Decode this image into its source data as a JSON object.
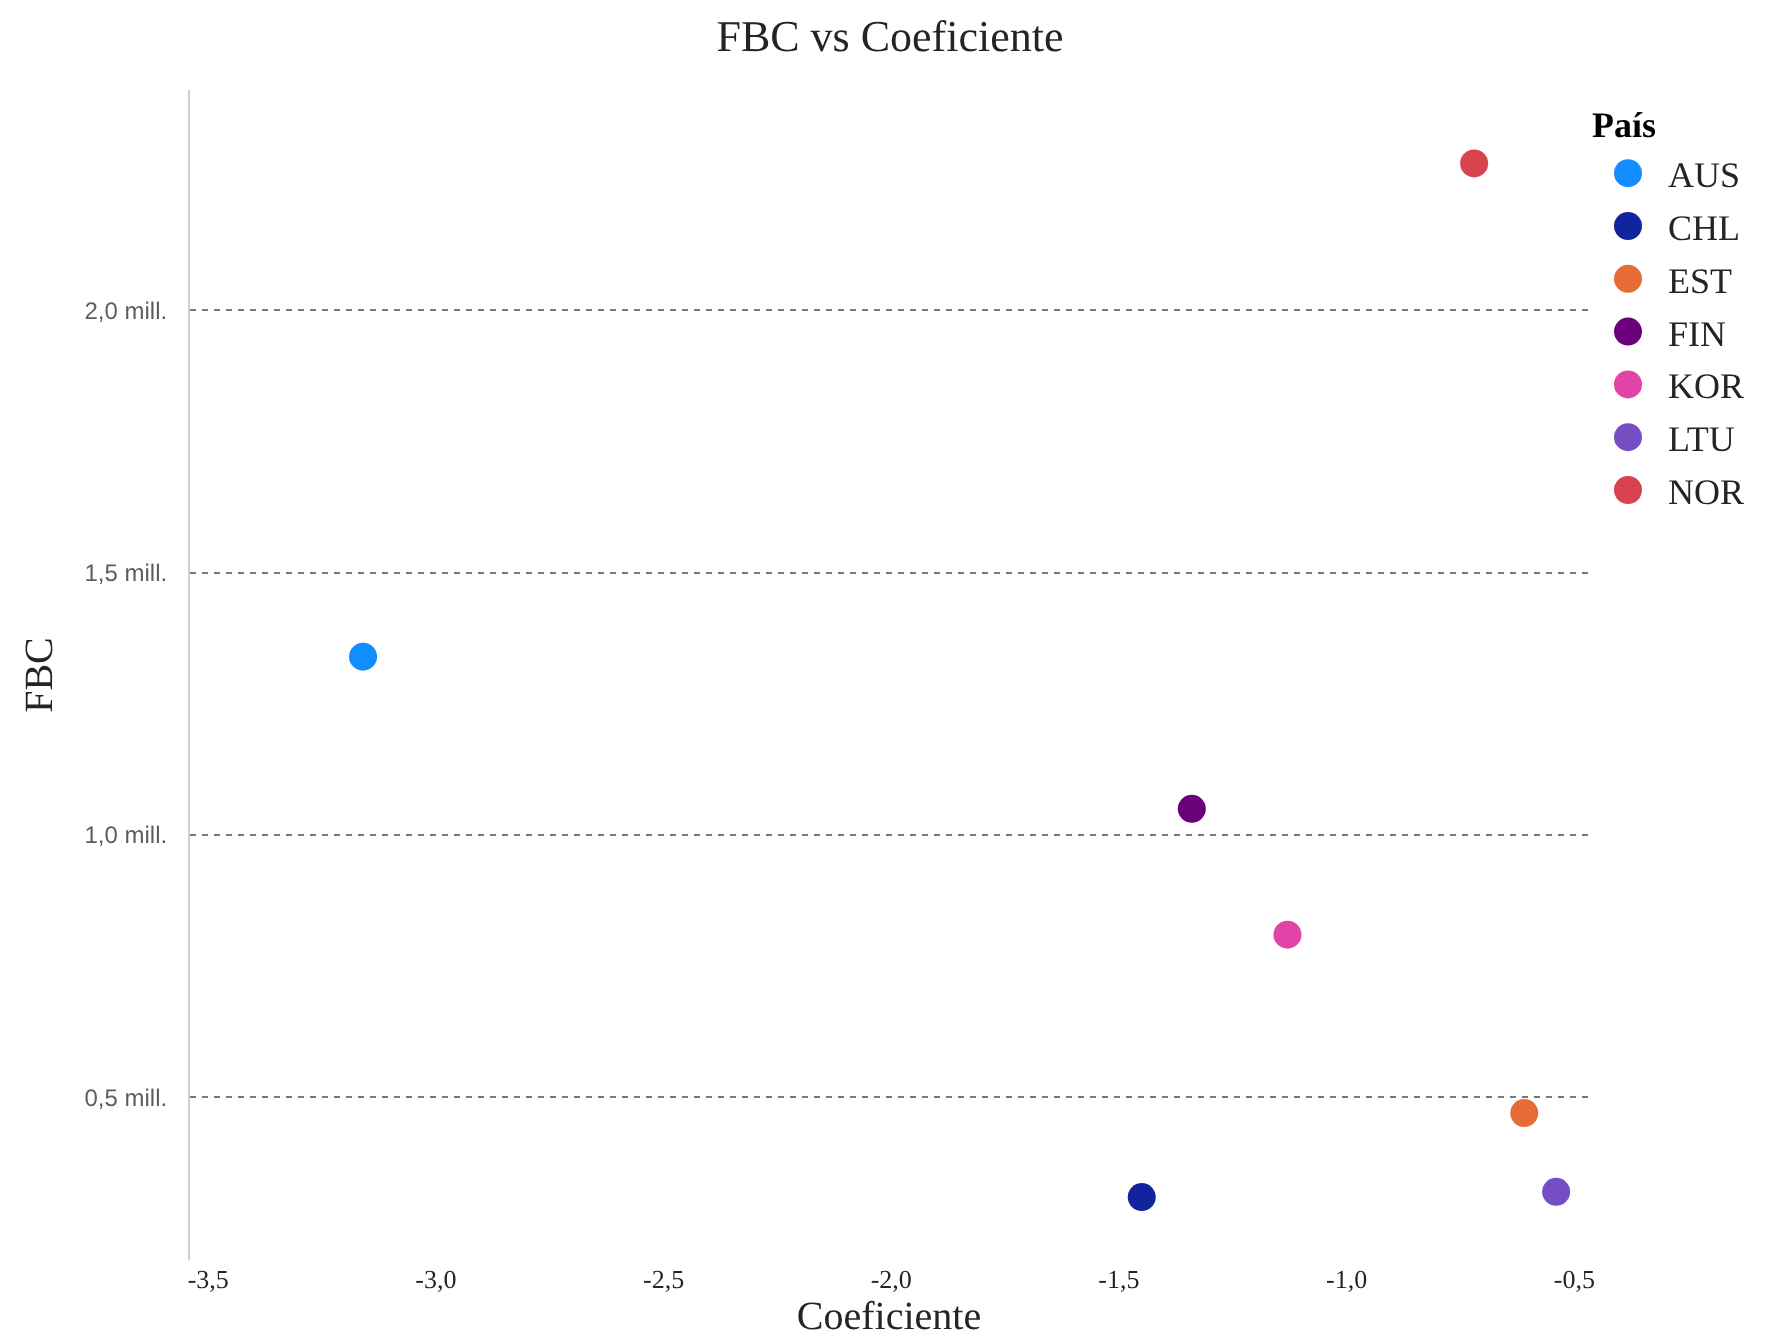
{
  "chart_data": {
    "type": "scatter",
    "title": "FBC vs Coeficiente",
    "xlabel": "Coeficiente",
    "ylabel": "FBC",
    "legend_title": "País",
    "legend": "top right",
    "grid": "y",
    "marker": "circle",
    "xlim": [
      -3.54,
      -0.47
    ],
    "xticks": [
      {
        "value": -3.5,
        "label": "-3,5"
      },
      {
        "value": -3,
        "label": "-3,0"
      },
      {
        "value": -2.5,
        "label": "-2,5"
      },
      {
        "value": -2,
        "label": "-2,0"
      },
      {
        "value": -1.5,
        "label": "-1,5"
      },
      {
        "value": -1,
        "label": "-1,0"
      },
      {
        "value": -0.5,
        "label": "-0,5"
      }
    ],
    "ylim": [
      0.19,
      2.42
    ],
    "yticks": [
      {
        "value": 0.5,
        "label": "0,5 mill."
      },
      {
        "value": 1,
        "label": "1,0 mill."
      },
      {
        "value": 1.5,
        "label": "1,5 mill."
      },
      {
        "value": 2,
        "label": "2,0 mill."
      }
    ],
    "series": [
      {
        "name": "AUS",
        "color": "#118dff",
        "x": [
          -3.16
        ],
        "values": [
          1.34
        ]
      },
      {
        "name": "CHL",
        "color": "#12239e",
        "x": [
          -1.45
        ],
        "values": [
          0.31
        ]
      },
      {
        "name": "EST",
        "color": "#e66c37",
        "x": [
          -0.61
        ],
        "values": [
          0.47
        ]
      },
      {
        "name": "FIN",
        "color": "#6b007b",
        "x": [
          -1.34
        ],
        "values": [
          1.05
        ]
      },
      {
        "name": "KOR",
        "color": "#e044a7",
        "x": [
          -1.13
        ],
        "values": [
          0.81
        ]
      },
      {
        "name": "LTU",
        "color": "#744ec2",
        "x": [
          -0.54
        ],
        "values": [
          0.32
        ]
      },
      {
        "name": "NOR",
        "color": "#d9434f",
        "x": [
          -0.72
        ],
        "values": [
          2.28
        ]
      }
    ]
  }
}
